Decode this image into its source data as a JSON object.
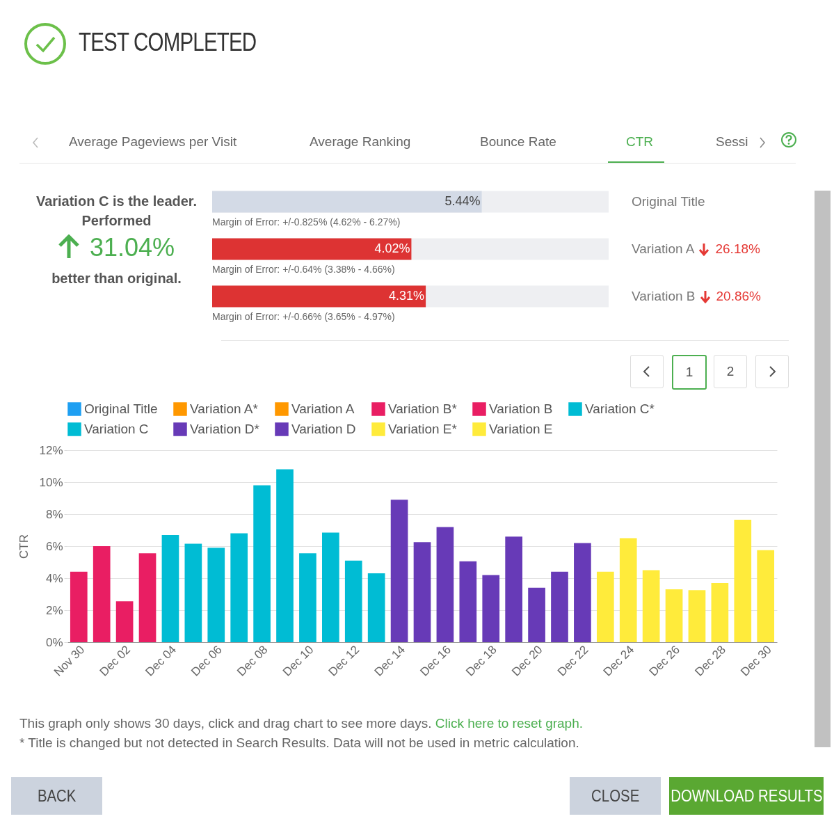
{
  "chart_data": [
    {
      "type": "other",
      "title": "TEST COMPLETED",
      "annotations": [
        "Average Pageviews per Visit",
        "Average Ranking",
        "Bounce Rate",
        "CTR",
        "Sessi",
        "Variation C is the leader.",
        "Performed",
        "31.04%",
        "better than original.",
        "1",
        "2",
        "BACK",
        "CLOSE",
        "DOWNLOAD RESULTS"
      ]
    },
    {
      "type": "bar",
      "orientation": "horizontal",
      "categories": [
        "Original Title",
        "Variation A",
        "Variation B"
      ],
      "values": [
        5.44,
        4.02,
        4.31
      ],
      "colors": [
        "#d3dae6",
        "#dd3333",
        "#dd3333"
      ],
      "xlim": [
        0,
        8
      ],
      "tick_labels": false,
      "value_labels": [
        "5.44%",
        "4.02%",
        "4.31%"
      ],
      "annotations": [
        "Margin of Error: +/-0.825% (4.62% - 6.27%)",
        "Margin of Error: +/-0.64% (3.38% - 4.66%)",
        "Margin of Error: +/-0.66% (3.65% - 4.97%)",
        null,
        "26.18%",
        "20.86%"
      ]
    },
    {
      "type": "bar",
      "ylabel": "CTR",
      "legend": "top",
      "grid": "y",
      "ylim": [
        0,
        12
      ],
      "yticks": [
        {
          "value": 0,
          "label": "0%"
        },
        {
          "value": 2,
          "label": "2%"
        },
        {
          "value": 4,
          "label": "4%"
        },
        {
          "value": 6,
          "label": "6%"
        },
        {
          "value": 8,
          "label": "8%"
        },
        {
          "value": 10,
          "label": "10%"
        },
        {
          "value": 12,
          "label": "12%"
        }
      ],
      "categories": [
        "Nov 30",
        null,
        "Dec 02",
        null,
        "Dec 04",
        null,
        "Dec 06",
        null,
        "Dec 08",
        null,
        "Dec 10",
        null,
        "Dec 12",
        null,
        "Dec 14",
        null,
        "Dec 16",
        null,
        "Dec 18",
        null,
        "Dec 20",
        null,
        "Dec 22",
        null,
        "Dec 24",
        null,
        "Dec 26",
        null,
        "Dec 28",
        null,
        "Dec 30"
      ],
      "series": [
        {
          "name": "Original Title",
          "color": "#1e9ff2",
          "values": [
            null,
            null,
            null,
            null,
            null,
            null,
            null,
            null,
            null,
            null,
            null,
            null,
            null,
            null,
            null,
            null,
            null,
            null,
            null,
            null,
            null,
            null,
            null,
            null,
            null,
            null,
            null,
            null,
            null,
            null,
            null
          ]
        },
        {
          "name": "Variation A*",
          "color": "#ff9800",
          "values": [
            null,
            null,
            null,
            null,
            null,
            null,
            null,
            null,
            null,
            null,
            null,
            null,
            null,
            null,
            null,
            null,
            null,
            null,
            null,
            null,
            null,
            null,
            null,
            null,
            null,
            null,
            null,
            null,
            null,
            null,
            null
          ]
        },
        {
          "name": "Variation A",
          "color": "#ff9800",
          "values": [
            null,
            null,
            null,
            null,
            null,
            null,
            null,
            null,
            null,
            null,
            null,
            null,
            null,
            null,
            null,
            null,
            null,
            null,
            null,
            null,
            null,
            null,
            null,
            null,
            null,
            null,
            null,
            null,
            null,
            null,
            null
          ]
        },
        {
          "name": "Variation B*",
          "color": "#e91e63",
          "values": [
            null,
            null,
            null,
            null,
            null,
            null,
            null,
            null,
            null,
            null,
            null,
            null,
            null,
            null,
            null,
            null,
            null,
            null,
            null,
            null,
            null,
            null,
            null,
            null,
            null,
            null,
            null,
            null,
            null,
            null,
            null
          ]
        },
        {
          "name": "Variation B",
          "color": "#e91e63",
          "values": [
            4.4,
            6.0,
            2.55,
            5.55,
            null,
            null,
            null,
            null,
            null,
            null,
            null,
            null,
            null,
            null,
            null,
            null,
            null,
            null,
            null,
            null,
            null,
            null,
            null,
            null,
            null,
            null,
            null,
            null,
            null,
            null,
            null
          ]
        },
        {
          "name": "Variation C*",
          "color": "#00bcd4",
          "values": [
            null,
            null,
            null,
            null,
            6.7,
            6.15,
            5.9,
            null,
            null,
            null,
            null,
            null,
            null,
            null,
            null,
            null,
            null,
            null,
            null,
            null,
            null,
            null,
            null,
            null,
            null,
            null,
            null,
            null,
            null,
            null,
            null
          ]
        },
        {
          "name": "Variation C",
          "color": "#00bcd4",
          "values": [
            null,
            null,
            null,
            null,
            null,
            null,
            null,
            6.8,
            9.8,
            10.8,
            5.55,
            6.85,
            5.1,
            4.3,
            null,
            null,
            null,
            null,
            null,
            null,
            null,
            null,
            null,
            null,
            null,
            null,
            null,
            null,
            null,
            null,
            null
          ]
        },
        {
          "name": "Variation D*",
          "color": "#673ab7",
          "values": [
            null,
            null,
            null,
            null,
            null,
            null,
            null,
            null,
            null,
            null,
            null,
            null,
            null,
            null,
            8.9,
            6.25,
            null,
            null,
            null,
            null,
            null,
            null,
            null,
            null,
            null,
            null,
            null,
            null,
            null,
            null,
            null
          ]
        },
        {
          "name": "Variation D",
          "color": "#673ab7",
          "values": [
            null,
            null,
            null,
            null,
            null,
            null,
            null,
            null,
            null,
            null,
            null,
            null,
            null,
            null,
            null,
            null,
            7.2,
            5.05,
            4.2,
            6.6,
            3.4,
            4.4,
            6.2,
            null,
            null,
            null,
            null,
            null,
            null,
            null,
            null
          ]
        },
        {
          "name": "Variation E*",
          "color": "#ffeb3b",
          "values": [
            null,
            null,
            null,
            null,
            null,
            null,
            null,
            null,
            null,
            null,
            null,
            null,
            null,
            null,
            null,
            null,
            null,
            null,
            null,
            null,
            null,
            null,
            null,
            4.4,
            null,
            null,
            null,
            null,
            null,
            null,
            null
          ]
        },
        {
          "name": "Variation E",
          "color": "#ffeb3b",
          "values": [
            null,
            null,
            null,
            null,
            null,
            null,
            null,
            null,
            null,
            null,
            null,
            null,
            null,
            null,
            null,
            null,
            null,
            null,
            null,
            null,
            null,
            null,
            null,
            null,
            6.5,
            4.5,
            3.3,
            3.25,
            3.7,
            7.65,
            5.75
          ]
        }
      ],
      "annotations": [
        "This graph only shows 30 days, click and drag chart to see more days.",
        "Click here to reset graph.",
        "* Title is changed but not detected in Search Results. Data will not be used in metric calculation."
      ]
    }
  ]
}
